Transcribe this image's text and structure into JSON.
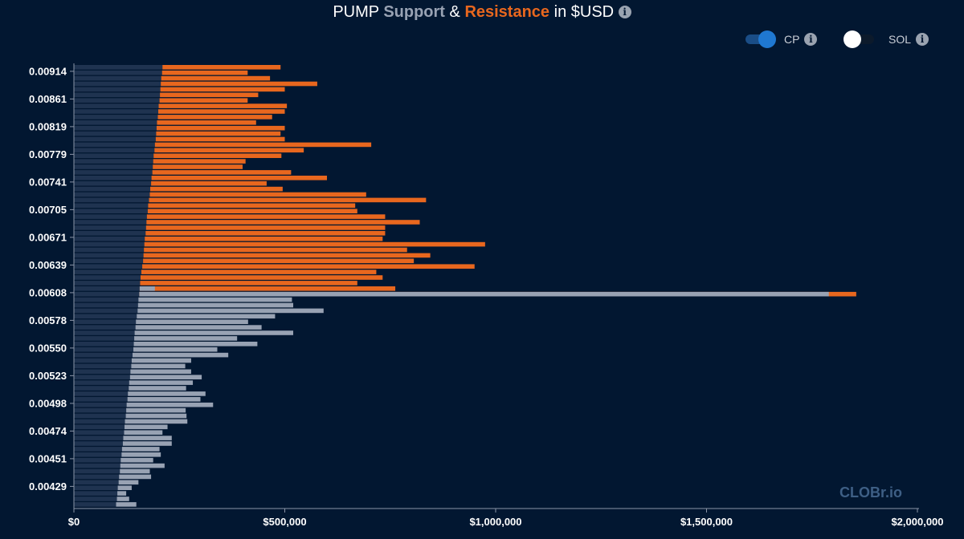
{
  "title": {
    "prefix": "PUMP",
    "support": "Support",
    "amp": "&",
    "resistance": "Resistance",
    "suffix": "in $USD"
  },
  "toggles": [
    {
      "label": "CP",
      "on": true
    },
    {
      "label": "SOL",
      "on": false
    }
  ],
  "watermark": "CLOBr.io",
  "colors": {
    "background": "#021731",
    "support": "#98a2b3",
    "resistance": "#e8671e",
    "depth": "#1f3350",
    "toggle_on": "#1f78d1"
  },
  "chart_data": {
    "type": "bar",
    "orientation": "horizontal",
    "title": "PUMP Support & Resistance in $USD",
    "xlim": [
      0,
      2000000
    ],
    "x_ticks": [
      "$0",
      "$500,000",
      "$1,000,000",
      "$1,500,000",
      "$2,000,000"
    ],
    "y_ticks": [
      "0.00914",
      "0.00861",
      "0.00819",
      "0.00779",
      "0.00741",
      "0.00705",
      "0.00671",
      "0.00639",
      "0.00608",
      "0.00578",
      "0.00550",
      "0.00523",
      "0.00498",
      "0.00474",
      "0.00451",
      "0.00429"
    ],
    "current_price_row": 40,
    "series": [
      {
        "name": "Support",
        "color": "#98a2b3"
      },
      {
        "name": "Resistance",
        "color": "#e8671e"
      }
    ],
    "depth_values": [
      210000,
      209000,
      207000,
      206000,
      205000,
      204000,
      203000,
      201000,
      200000,
      199000,
      197000,
      196000,
      195000,
      194000,
      192000,
      191000,
      189000,
      188000,
      187000,
      186000,
      184000,
      183000,
      181000,
      180000,
      178000,
      176000,
      175000,
      173000,
      172000,
      171000,
      170000,
      168000,
      167000,
      166000,
      165000,
      164000,
      162000,
      160000,
      158000,
      157000,
      156000,
      155000,
      153000,
      152000,
      151000,
      149000,
      147000,
      146000,
      144000,
      143000,
      142000,
      141000,
      139000,
      137000,
      136000,
      134000,
      133000,
      131000,
      130000,
      128000,
      127000,
      125000,
      124000,
      123000,
      121000,
      120000,
      119000,
      117000,
      116000,
      114000,
      113000,
      111000,
      110000,
      109000,
      107000,
      106000,
      104000,
      103000,
      102000,
      100000
    ],
    "resistance_values": [
      490000,
      412000,
      465000,
      577000,
      500000,
      437000,
      412000,
      505000,
      500000,
      470000,
      432000,
      500000,
      490000,
      500000,
      705000,
      545000,
      492000,
      407000,
      400000,
      515000,
      600000,
      457000,
      495000,
      693000,
      835000,
      667000,
      672000,
      738000,
      820000,
      738000,
      738000,
      732000,
      975000,
      790000,
      845000,
      806000,
      950000,
      717000,
      732000,
      672000,
      762000,
      1855000
    ],
    "support_values": [
      1790000,
      517000,
      520000,
      592000,
      477000,
      413000,
      445000,
      520000,
      387000,
      435000,
      340000,
      366000,
      278000,
      264000,
      278000,
      303000,
      282000,
      266000,
      312000,
      300000,
      330000,
      265000,
      267000,
      269000,
      222000,
      210000,
      232000,
      232000,
      203000,
      206000,
      188000,
      215000,
      180000,
      183000,
      153000,
      137000,
      124000,
      131000,
      148000
    ],
    "grid": false,
    "legend": "none"
  }
}
